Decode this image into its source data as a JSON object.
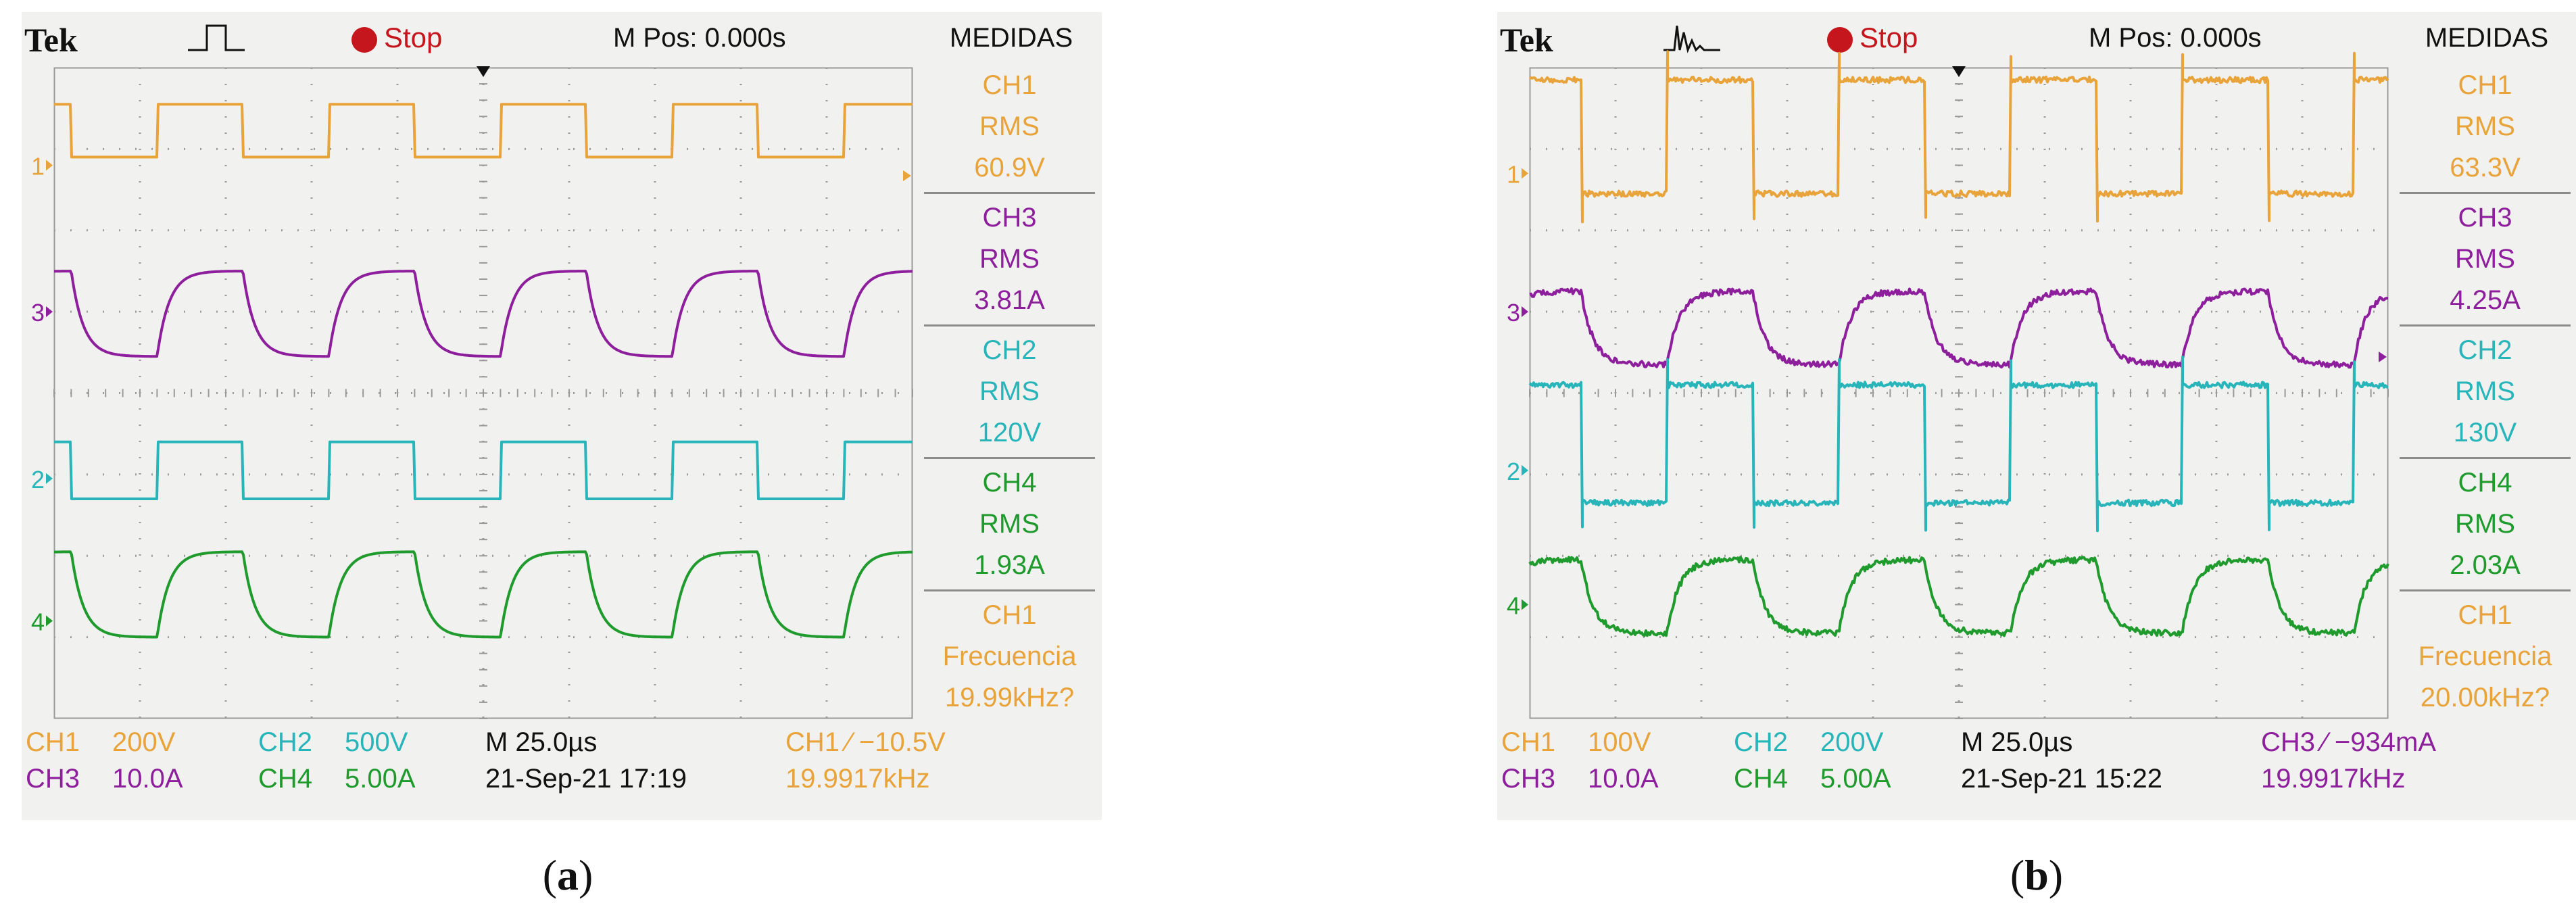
{
  "colors": {
    "ch1": "#e8a33a",
    "ch2": "#27b5ba",
    "ch3": "#8e1f9c",
    "ch4": "#1f9a2c",
    "grid": "#9a9a9a",
    "stop": "#c4161c",
    "text": "#111111"
  },
  "scopes": [
    {
      "id": "a",
      "brand": "Tek",
      "status": "Stop",
      "trigger_icon": "single-pulse-icon",
      "mpos": "M Pos: 0.000s",
      "measure_title": "MEDIDAS",
      "measurements": [
        {
          "ch": "CH1",
          "type": "RMS",
          "value": "60.9V",
          "color": "#e8a33a"
        },
        {
          "ch": "CH3",
          "type": "RMS",
          "value": "3.81A",
          "color": "#8e1f9c"
        },
        {
          "ch": "CH2",
          "type": "RMS",
          "value": "120V",
          "color": "#27b5ba"
        },
        {
          "ch": "CH4",
          "type": "RMS",
          "value": "1.93A",
          "color": "#1f9a2c"
        },
        {
          "ch": "CH1",
          "type": "Frecuencia",
          "value": "19.99kHz?",
          "color": "#e8a33a"
        }
      ],
      "footer": {
        "ch1_label": "CH1",
        "ch1_scale": "200V",
        "ch2_label": "CH2",
        "ch2_scale": "500V",
        "ch3_label": "CH3",
        "ch3_scale": "10.0A",
        "ch4_label": "CH4",
        "ch4_scale": "5.00A",
        "timebase": "M 25.0µs",
        "datetime": "21-Sep-21 17:19",
        "trigger_info": "CH1 ∕ −10.5V",
        "trigger_color": "#e8a33a",
        "trig_freq": "19.9917kHz"
      },
      "caption_open": "(",
      "caption_letter": "a",
      "caption_close": ")"
    },
    {
      "id": "b",
      "brand": "Tek",
      "status": "Stop",
      "trigger_icon": "noisy-pulse-icon",
      "mpos": "M Pos: 0.000s",
      "measure_title": "MEDIDAS",
      "measurements": [
        {
          "ch": "CH1",
          "type": "RMS",
          "value": "63.3V",
          "color": "#e8a33a"
        },
        {
          "ch": "CH3",
          "type": "RMS",
          "value": "4.25A",
          "color": "#8e1f9c"
        },
        {
          "ch": "CH2",
          "type": "RMS",
          "value": "130V",
          "color": "#27b5ba"
        },
        {
          "ch": "CH4",
          "type": "RMS",
          "value": "2.03A",
          "color": "#1f9a2c"
        },
        {
          "ch": "CH1",
          "type": "Frecuencia",
          "value": "20.00kHz?",
          "color": "#e8a33a"
        }
      ],
      "footer": {
        "ch1_label": "CH1",
        "ch1_scale": "100V",
        "ch2_label": "CH2",
        "ch2_scale": "200V",
        "ch3_label": "CH3",
        "ch3_scale": "10.0A",
        "ch4_label": "CH4",
        "ch4_scale": "5.00A",
        "timebase": "M 25.0µs",
        "datetime": "21-Sep-21 15:22",
        "trigger_info": "CH3 ∕ −934mA",
        "trigger_color": "#8e1f9c",
        "trig_freq": "19.9917kHz"
      },
      "caption_open": "(",
      "caption_letter": "b",
      "caption_close": ")"
    }
  ],
  "chart_data": [
    {
      "type": "line",
      "title": "",
      "xlabel": "Time (25.0µs/div)",
      "ylabel": "",
      "xlim": [
        -125,
        125
      ],
      "ylim": [
        -4,
        4
      ],
      "grid": true,
      "x_divisions": 10,
      "y_divisions": 8,
      "period_us": 50,
      "duty": 0.5,
      "series": [
        {
          "name": "CH1",
          "marker": "1",
          "level": 2.8,
          "low": 2.9,
          "high": 3.55,
          "edge": "sharp",
          "noise": 0,
          "spikes": false,
          "start_phase": 0.4,
          "color": "#e8a33a"
        },
        {
          "name": "CH3",
          "marker": "3",
          "level": 1.0,
          "low": 0.45,
          "high": 1.5,
          "edge": "smooth",
          "noise": 0,
          "spikes": false,
          "start_phase": 0.4,
          "color": "#8e1f9c"
        },
        {
          "name": "CH2",
          "marker": "2",
          "level": -1.05,
          "low": -1.3,
          "high": -0.6,
          "edge": "sharp",
          "noise": 0,
          "spikes": false,
          "start_phase": 0.4,
          "color": "#27b5ba"
        },
        {
          "name": "CH4",
          "marker": "4",
          "level": -2.8,
          "low": -3.0,
          "high": -1.95,
          "edge": "smooth",
          "noise": 0,
          "spikes": false,
          "start_phase": 0.4,
          "color": "#1f9a2c"
        }
      ]
    },
    {
      "type": "line",
      "title": "",
      "xlabel": "Time (25.0µs/div)",
      "ylabel": "",
      "xlim": [
        -125,
        125
      ],
      "ylim": [
        -4,
        4
      ],
      "grid": true,
      "x_divisions": 10,
      "y_divisions": 8,
      "period_us": 50,
      "duty": 0.5,
      "series": [
        {
          "name": "CH1",
          "marker": "1",
          "level": 2.7,
          "low": 2.45,
          "high": 3.85,
          "edge": "sharp",
          "noise": 0.035,
          "spikes": true,
          "start_phase": 0.2,
          "color": "#e8a33a"
        },
        {
          "name": "CH3",
          "marker": "3",
          "level": 1.0,
          "low": 0.35,
          "high": 1.25,
          "edge": "smooth",
          "noise": 0.035,
          "spikes": false,
          "start_phase": 0.2,
          "color": "#8e1f9c"
        },
        {
          "name": "CH2",
          "marker": "2",
          "level": -0.95,
          "low": -1.35,
          "high": 0.1,
          "edge": "sharp",
          "noise": 0.035,
          "spikes": true,
          "start_phase": 0.2,
          "color": "#27b5ba"
        },
        {
          "name": "CH4",
          "marker": "4",
          "level": -2.6,
          "low": -2.95,
          "high": -2.05,
          "edge": "smooth",
          "noise": 0.035,
          "spikes": false,
          "start_phase": 0.2,
          "color": "#1f9a2c"
        }
      ]
    }
  ]
}
